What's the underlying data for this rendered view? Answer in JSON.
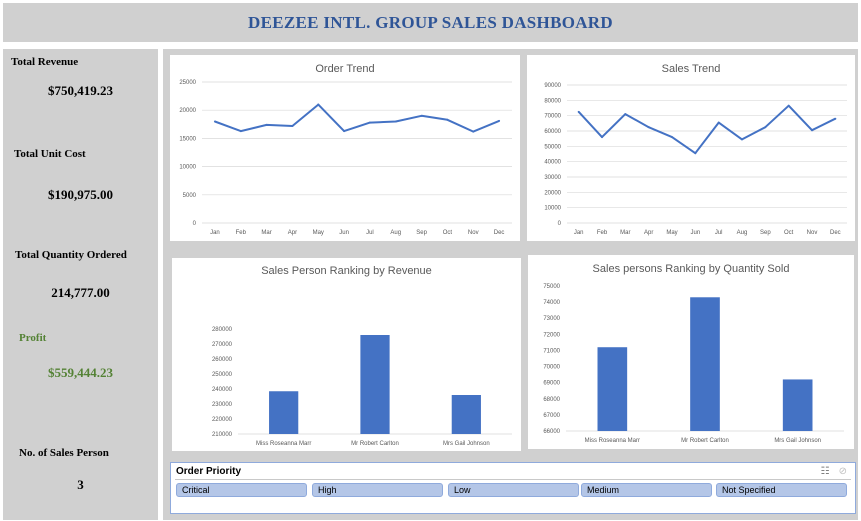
{
  "header": {
    "title": "DEEZEE INTL. GROUP SALES DASHBOARD"
  },
  "kpis": {
    "total_revenue": {
      "label": "Total Revenue",
      "value": "$750,419.23"
    },
    "total_unit_cost": {
      "label": "Total Unit Cost",
      "value": "$190,975.00"
    },
    "total_quantity": {
      "label": "Total Quantity Ordered",
      "value": "214,777.00"
    },
    "profit": {
      "label": "Profit",
      "value": "$559,444.23"
    },
    "sales_persons": {
      "label": "No. of Sales Person",
      "value": "3"
    }
  },
  "colors": {
    "accent": "#4472c4",
    "title_blue": "#2f5597",
    "profit_green": "#548235",
    "panel_grey": "#d0d0d0"
  },
  "chart_data": [
    {
      "type": "line",
      "title": "Order Trend",
      "categories": [
        "Jan",
        "Feb",
        "Mar",
        "Apr",
        "May",
        "Jun",
        "Jul",
        "Aug",
        "Sep",
        "Oct",
        "Nov",
        "Dec"
      ],
      "values": [
        18000,
        16300,
        17400,
        17200,
        21000,
        16300,
        17800,
        18000,
        19000,
        18300,
        16200,
        18100
      ],
      "ylim": [
        0,
        25000
      ],
      "yticks": [
        0,
        5000,
        10000,
        15000,
        20000,
        25000
      ],
      "ytick_labels": [
        "0",
        "5000",
        "10000",
        "15000",
        "20000",
        "25000"
      ],
      "grid": true
    },
    {
      "type": "line",
      "title": "Sales Trend",
      "categories": [
        "Jan",
        "Feb",
        "Mar",
        "Apr",
        "May",
        "Jun",
        "Jul",
        "Aug",
        "Sep",
        "Oct",
        "Nov",
        "Dec"
      ],
      "values": [
        72500,
        56000,
        71000,
        62500,
        56000,
        45500,
        65500,
        54500,
        62500,
        76500,
        60500,
        68000
      ],
      "ylim": [
        0,
        90000
      ],
      "yticks": [
        0,
        10000,
        20000,
        30000,
        40000,
        50000,
        60000,
        70000,
        80000,
        90000
      ],
      "ytick_labels": [
        "0",
        "10000",
        "20000",
        "30000",
        "40000",
        "50000",
        "60000",
        "70000",
        "80000",
        "90000"
      ],
      "grid": true
    },
    {
      "type": "bar",
      "title": "Sales Person Ranking by Revenue",
      "categories": [
        "Miss Roseanna Marr",
        "Mr Robert Carlton",
        "Mrs Gail Johnson"
      ],
      "values": [
        238500,
        276000,
        236000
      ],
      "ylim": [
        210000,
        280000
      ],
      "yticks": [
        210000,
        220000,
        230000,
        240000,
        250000,
        260000,
        270000,
        280000
      ],
      "ytick_labels": [
        "210000",
        "220000",
        "230000",
        "240000",
        "250000",
        "260000",
        "270000",
        "280000"
      ],
      "grid": false
    },
    {
      "type": "bar",
      "title": "Sales persons Ranking by Quantity Sold",
      "categories": [
        "Miss Roseanna Marr",
        "Mr Robert Carlton",
        "Mrs Gail Johnson"
      ],
      "values": [
        71200,
        74300,
        69200
      ],
      "ylim": [
        66000,
        75000
      ],
      "yticks": [
        66000,
        67000,
        68000,
        69000,
        70000,
        71000,
        72000,
        73000,
        74000,
        75000
      ],
      "ytick_labels": [
        "66000",
        "67000",
        "68000",
        "69000",
        "70000",
        "71000",
        "72000",
        "73000",
        "74000",
        "75000"
      ],
      "grid": false
    }
  ],
  "slicer": {
    "title": "Order Priority",
    "icons": [
      "multi-select-icon",
      "clear-filter-icon"
    ],
    "items": [
      "Critical",
      "High",
      "Low",
      "Medium",
      "Not Specified"
    ]
  }
}
